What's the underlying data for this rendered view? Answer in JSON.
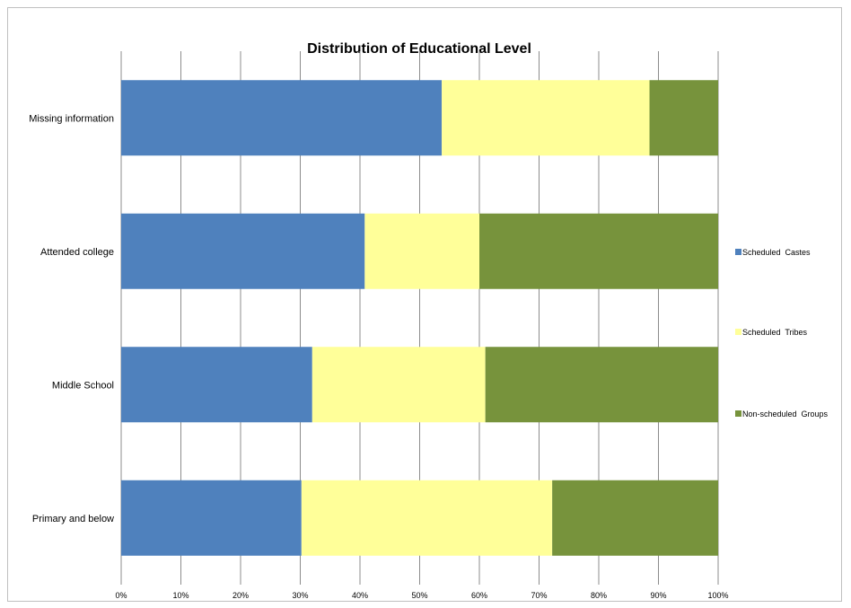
{
  "chart_data": {
    "type": "bar",
    "orientation": "horizontal",
    "stacked": "percent",
    "title": "Distribution of Educational Level",
    "categories": [
      "Missing information",
      "Attended college",
      "Middle School",
      "Primary and below"
    ],
    "series": [
      {
        "name": "Scheduled  Castes",
        "color": "#4f81bd",
        "values": [
          53.7,
          40.8,
          32.0,
          30.2
        ]
      },
      {
        "name": "Scheduled  Tribes",
        "color": "#ffff99",
        "values": [
          34.8,
          19.2,
          29.0,
          42.0
        ]
      },
      {
        "name": "Non-scheduled  Groups",
        "color": "#77933c",
        "values": [
          11.5,
          40.0,
          39.0,
          27.8
        ]
      }
    ],
    "x_ticks": [
      "0%",
      "10%",
      "20%",
      "30%",
      "40%",
      "50%",
      "60%",
      "70%",
      "80%",
      "90%",
      "100%"
    ],
    "xlim": [
      0,
      100
    ],
    "grid": "vertical",
    "legend_position": "right"
  }
}
